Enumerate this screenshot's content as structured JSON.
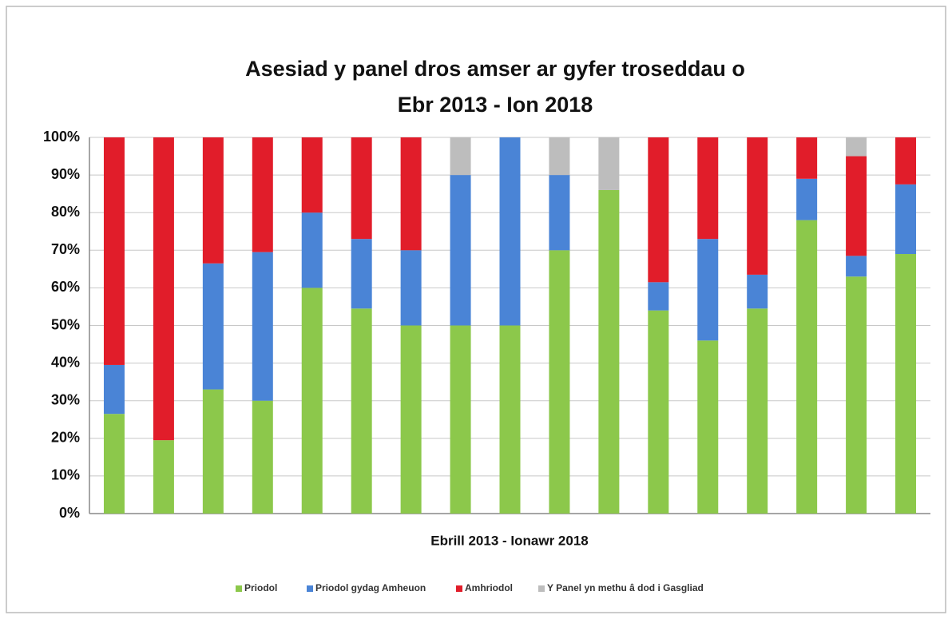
{
  "chart_data": {
    "type": "stacked_bar",
    "title": [
      "Asesiad y panel dros amser ar gyfer troseddau o",
      "Ebr 2013 - Ion 2018"
    ],
    "x_label": "Ebrill 2013 - Ionawr 2018",
    "categories": [
      null,
      null,
      null,
      null,
      null,
      null,
      null,
      null,
      null,
      null,
      null,
      null,
      null,
      null,
      null,
      null,
      null
    ],
    "series": [
      {
        "name": "Priodol",
        "color": "#8cc84b",
        "values": [
          26.5,
          19.5,
          33,
          30,
          60,
          54.5,
          50,
          50,
          50,
          70,
          86,
          54,
          46,
          54.5,
          78,
          63,
          69
        ]
      },
      {
        "name": "Priodol gydag Amheuon",
        "color": "#4a84d6",
        "values": [
          13,
          0,
          33.5,
          39.5,
          20,
          18.5,
          20,
          40,
          50,
          20,
          0,
          7.5,
          27,
          9,
          11,
          5.5,
          18.5
        ]
      },
      {
        "name": "Amhriodol",
        "color": "#e11d2a",
        "values": [
          60.5,
          80.5,
          33.5,
          30.5,
          20,
          27,
          30,
          0,
          0,
          0,
          0,
          38.5,
          27,
          36.5,
          11,
          26.5,
          12.5
        ]
      },
      {
        "name": "Y Panel yn methu â dod i Gasgliad",
        "color": "#bdbdbd",
        "values": [
          0,
          0,
          0,
          0,
          0,
          0,
          0,
          10,
          0,
          10,
          14,
          0,
          0,
          0,
          0,
          5,
          0
        ]
      }
    ],
    "ylim": [
      0,
      100
    ],
    "yticks": [
      {
        "value": 0,
        "label": "0%"
      },
      {
        "value": 10,
        "label": "10%"
      },
      {
        "value": 20,
        "label": "20%"
      },
      {
        "value": 30,
        "label": "30%"
      },
      {
        "value": 40,
        "label": "40%"
      },
      {
        "value": 50,
        "label": "50%"
      },
      {
        "value": 60,
        "label": "60%"
      },
      {
        "value": 70,
        "label": "70%"
      },
      {
        "value": 80,
        "label": "80%"
      },
      {
        "value": 90,
        "label": "90%"
      },
      {
        "value": 100,
        "label": "100%"
      }
    ],
    "grid": true,
    "legend": "bottom"
  }
}
